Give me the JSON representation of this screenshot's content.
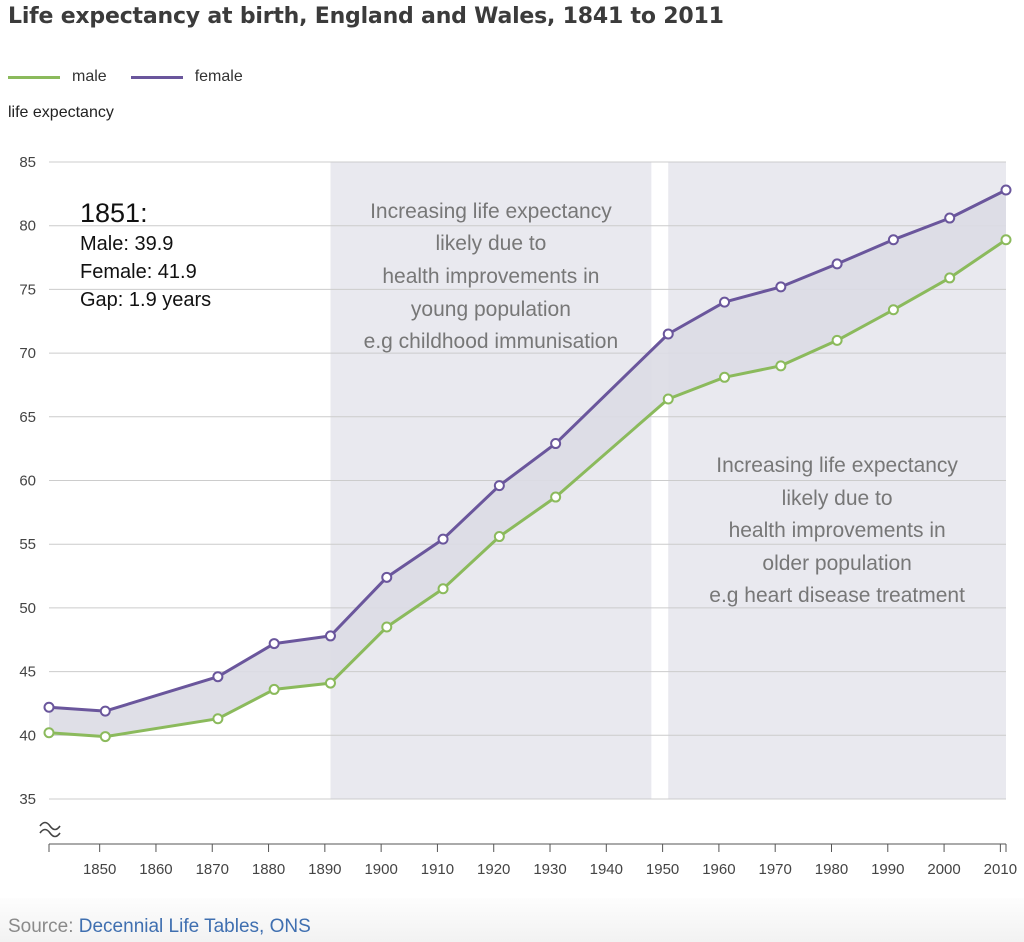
{
  "title": "Life expectancy at birth, England and Wales, 1841 to 2011",
  "legend": [
    {
      "label": "male",
      "color": "#8bba5c"
    },
    {
      "label": "female",
      "color": "#6a569c"
    }
  ],
  "y_axis_title": "life expectancy",
  "tooltip": {
    "year": "1851:",
    "male": "Male: 39.9",
    "female": "Female: 41.9",
    "gap": "Gap: 1.9 years"
  },
  "source": {
    "prefix": "Source: ",
    "link_text": "Decennial Life Tables, ONS"
  },
  "colors": {
    "male": "#8bba5c",
    "female": "#6a569c",
    "gap_fill": "#dcdce4",
    "shade": "#e9e9ef",
    "gridline": "#cccccc",
    "annotation_text": "#777777"
  },
  "chart_data": {
    "type": "line",
    "title": "Life expectancy at birth, England and Wales, 1841 to 2011",
    "ylabel": "life expectancy",
    "xlabel": "",
    "xlim": [
      1841,
      2011
    ],
    "ylim": [
      35,
      85
    ],
    "y_ticks": [
      35,
      40,
      45,
      50,
      55,
      60,
      65,
      70,
      75,
      80,
      85
    ],
    "x_ticks": [
      1850,
      1860,
      1870,
      1880,
      1890,
      1900,
      1910,
      1920,
      1930,
      1940,
      1950,
      1960,
      1970,
      1980,
      1990,
      2000,
      2010
    ],
    "axis_break": true,
    "grid": "horizontal",
    "legend_position": "top-left",
    "x": [
      1841,
      1851,
      1871,
      1881,
      1891,
      1901,
      1911,
      1921,
      1931,
      1951,
      1961,
      1971,
      1981,
      1991,
      2001,
      2011
    ],
    "series": [
      {
        "name": "male",
        "color": "#8bba5c",
        "values": [
          40.2,
          39.9,
          41.3,
          43.6,
          44.1,
          48.5,
          51.5,
          55.6,
          58.7,
          66.4,
          68.1,
          69.0,
          71.0,
          73.4,
          75.9,
          78.9
        ]
      },
      {
        "name": "female",
        "color": "#6a569c",
        "values": [
          42.2,
          41.9,
          44.6,
          47.2,
          47.8,
          52.4,
          55.4,
          59.6,
          62.9,
          71.5,
          74.0,
          75.2,
          77.0,
          78.9,
          80.6,
          82.8
        ]
      }
    ],
    "shaded_regions": [
      {
        "from": 1891,
        "to": 1948,
        "lines": [
          "Increasing life expectancy",
          "likely due to",
          "health improvements in",
          "young population",
          "e.g childhood immunisation"
        ]
      },
      {
        "from": 1951,
        "to": 2011,
        "lines": [
          "Increasing life expectancy",
          "likely due to",
          "health improvements in",
          "older population",
          "e.g heart disease treatment"
        ]
      }
    ]
  }
}
